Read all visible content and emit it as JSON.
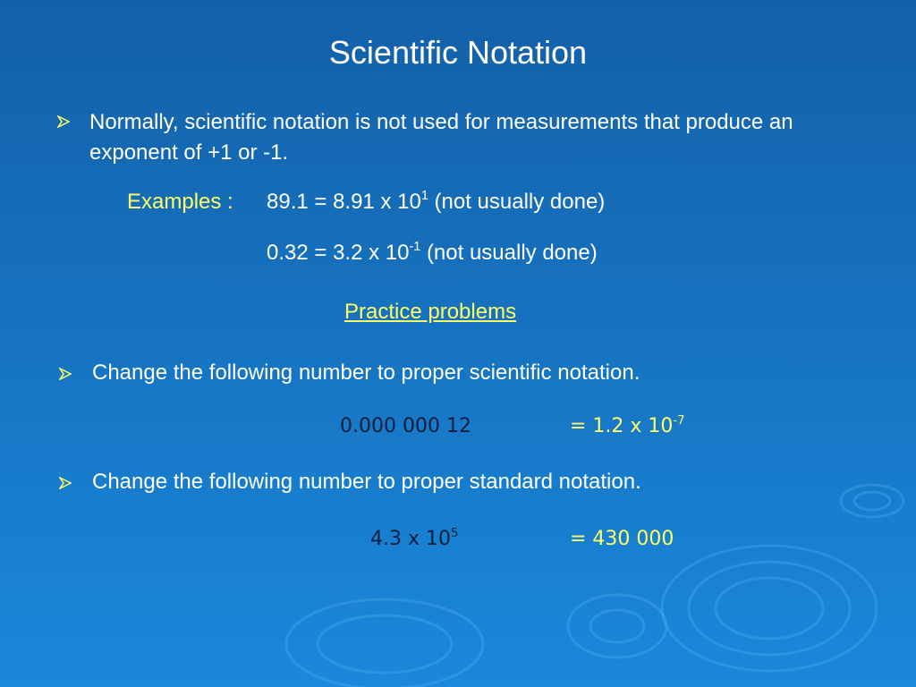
{
  "title": "Scientific Notation",
  "intro": {
    "text": "Normally, scientific notation is not used for measurements that produce an exponent of +1 or -1.",
    "examples_label": "Examples :",
    "examples": [
      {
        "base": "89.1 = 8.91 x 10",
        "exponent": "1",
        "note": "(not usually done)"
      },
      {
        "base": "0.32 = 3.2 x 10",
        "exponent": "-1",
        "note": "(not usually done)"
      }
    ]
  },
  "practice_heading": "Practice problems",
  "problems": [
    {
      "instruction": "Change the following number to proper scientific notation.",
      "question": "0.000 000 12",
      "answer": "= 1.2 x 10",
      "answer_exponent": "-7"
    },
    {
      "instruction": "Change the following number to proper standard notation.",
      "question": "4.3 x 10",
      "question_exponent": "5",
      "answer": "= 430 000"
    }
  ]
}
